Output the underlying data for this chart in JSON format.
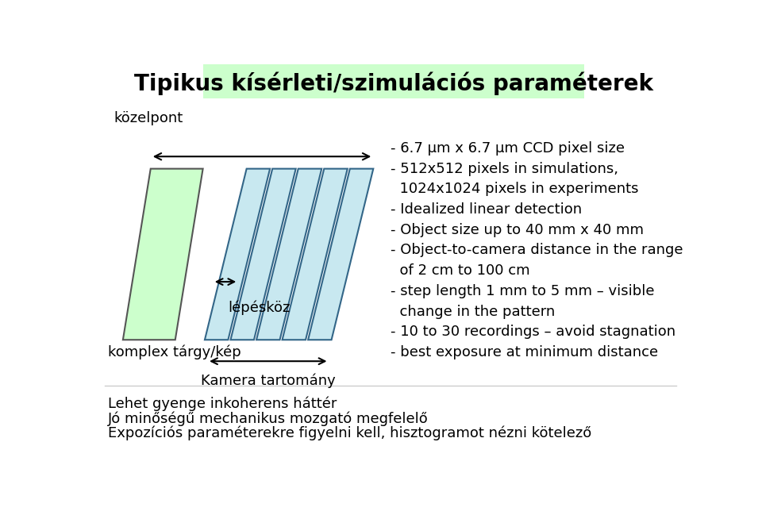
{
  "title": "Tipikus kísérleti/szimulációs paraméterek",
  "title_bg": "#ccffcc",
  "title_fontsize": 20,
  "bg_color": "#ffffff",
  "kozelpont_label": "közelpont",
  "komplex_label": "komplex tárgy/kép",
  "lepeskoz_label": "lépésköz",
  "kamera_label": "Kamera tartomány",
  "bullet_lines": [
    "- 6.7 μm x 6.7 μm CCD pixel size",
    "- 512x512 pixels in simulations,",
    "  1024x1024 pixels in experiments",
    "- Idealized linear detection",
    "- Object size up to 40 mm x 40 mm",
    "- Object-to-camera distance in the range",
    "  of 2 cm to 100 cm",
    "- step length 1 mm to 5 mm – visible",
    "  change in the pattern",
    "- 10 to 30 recordings – avoid stagnation",
    "- best exposure at minimum distance"
  ],
  "footer_lines": [
    "Lehet gyenge inkoherens háttér",
    "Jó minőségű mechanikus mozgató megfelelő",
    "Expozíciós paraméterekre figyelni kell, hisztogramot nézni kötelező"
  ],
  "object_color": "#ccffcc",
  "object_edge": "#555555",
  "screen_color": "#c8e8f0",
  "screen_edge_color": "#336688",
  "arrow_color": "#000000",
  "text_color": "#000000",
  "footer_fontsize": 13,
  "bullet_fontsize": 13,
  "label_fontsize": 13
}
